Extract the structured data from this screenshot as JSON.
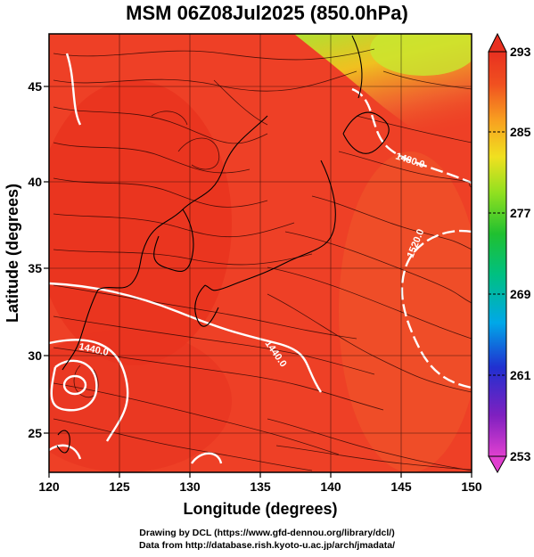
{
  "title": "MSM 06Z08Jul2025 (850.0hPa)",
  "x_axis": {
    "label": "Longitude (degrees)",
    "ticks": [
      120,
      125,
      130,
      135,
      140,
      145,
      150
    ],
    "range": [
      120,
      150
    ]
  },
  "y_axis": {
    "label": "Latitude  (degrees)",
    "ticks": [
      25,
      30,
      35,
      40,
      45
    ],
    "range": [
      22.4,
      47.6
    ]
  },
  "colorbar": {
    "labels": [
      253,
      261,
      269,
      277,
      285,
      293
    ],
    "range": [
      253,
      293
    ],
    "colors": [
      "#e040d0",
      "#6020b0",
      "#2040d0",
      "#00a0e0",
      "#00c080",
      "#30c030",
      "#a0e020",
      "#f0e020",
      "#f8a020",
      "#f05020",
      "#e83020"
    ]
  },
  "contour_labels": [
    "1480.0",
    "1520.0",
    "1440.0",
    "1440.0"
  ],
  "credits": {
    "line1": "Drawing by DCL (https://www.gfd-dennou.org/library/dcl/)",
    "line2": "Data from http://database.rish.kyoto-u.ac.jp/arch/jmadata/"
  },
  "colors": {
    "field_warm": "#ee4026",
    "field_hot": "#e8301c",
    "field_north": "#f08030",
    "field_far_north": "#c8e830",
    "contour": "#ffffff",
    "coast": "#000000"
  }
}
